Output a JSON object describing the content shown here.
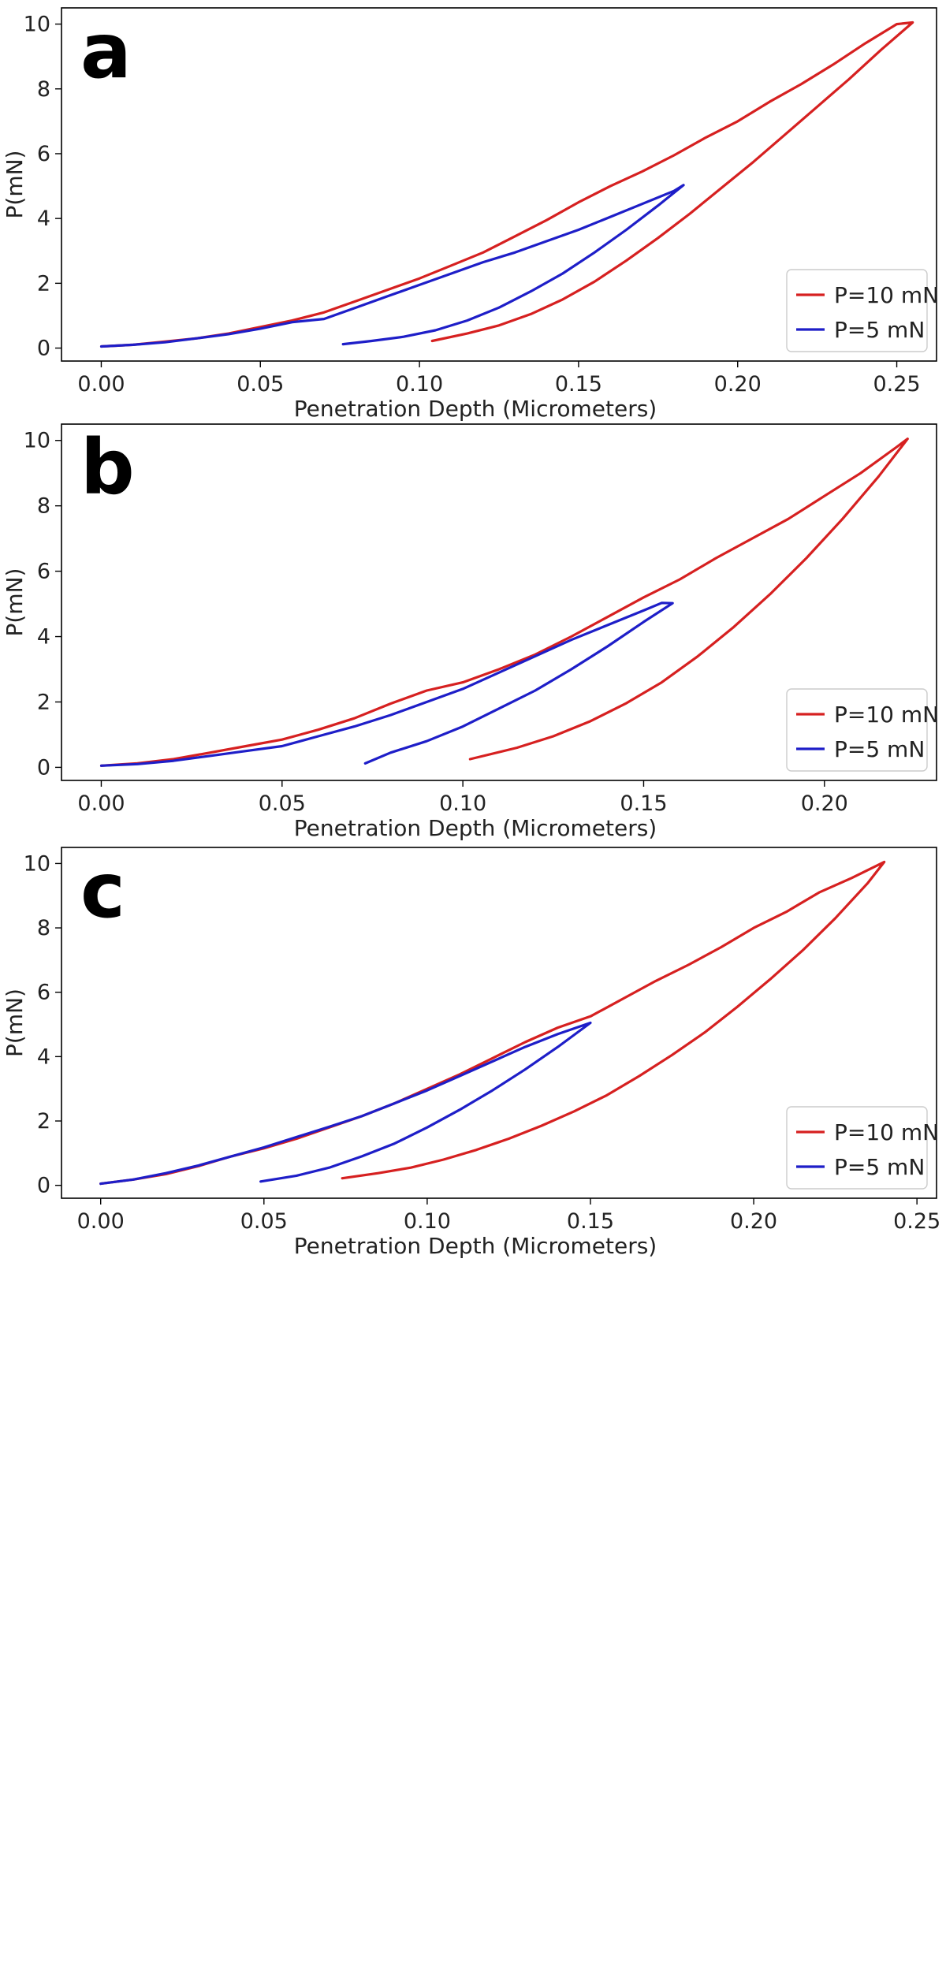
{
  "chart_data": [
    {
      "type": "line",
      "panel_label": "a",
      "xlabel": "Penetration Depth (Micrometers)",
      "ylabel": "P(mN)",
      "xlim": [
        -0.0125,
        0.2625
      ],
      "ylim": [
        -0.4,
        10.5
      ],
      "xticks": [
        0.0,
        0.05,
        0.1,
        0.15,
        0.2,
        0.25
      ],
      "xtick_labels": [
        "0.00",
        "0.05",
        "0.10",
        "0.15",
        "0.20",
        "0.25"
      ],
      "yticks": [
        0,
        2,
        4,
        6,
        8,
        10
      ],
      "ytick_labels": [
        "0",
        "2",
        "4",
        "6",
        "8",
        "10"
      ],
      "grid": false,
      "legend_position": "lower-right",
      "series": [
        {
          "name": "P=10 mN",
          "color": "#d62020",
          "points": [
            [
              0.0,
              0.05
            ],
            [
              0.01,
              0.1
            ],
            [
              0.02,
              0.2
            ],
            [
              0.03,
              0.3
            ],
            [
              0.04,
              0.45
            ],
            [
              0.05,
              0.65
            ],
            [
              0.06,
              0.85
            ],
            [
              0.07,
              1.1
            ],
            [
              0.08,
              1.45
            ],
            [
              0.09,
              1.8
            ],
            [
              0.1,
              2.15
            ],
            [
              0.11,
              2.55
            ],
            [
              0.12,
              2.95
            ],
            [
              0.13,
              3.45
            ],
            [
              0.14,
              3.95
            ],
            [
              0.15,
              4.5
            ],
            [
              0.16,
              5.0
            ],
            [
              0.17,
              5.45
            ],
            [
              0.18,
              5.95
            ],
            [
              0.19,
              6.5
            ],
            [
              0.2,
              7.0
            ],
            [
              0.21,
              7.6
            ],
            [
              0.22,
              8.15
            ],
            [
              0.23,
              8.75
            ],
            [
              0.24,
              9.4
            ],
            [
              0.25,
              10.0
            ],
            [
              0.255,
              10.05
            ],
            [
              0.245,
              9.2
            ],
            [
              0.235,
              8.3
            ],
            [
              0.225,
              7.45
            ],
            [
              0.215,
              6.6
            ],
            [
              0.205,
              5.75
            ],
            [
              0.195,
              4.95
            ],
            [
              0.185,
              4.15
            ],
            [
              0.175,
              3.4
            ],
            [
              0.165,
              2.7
            ],
            [
              0.155,
              2.05
            ],
            [
              0.145,
              1.5
            ],
            [
              0.135,
              1.05
            ],
            [
              0.125,
              0.7
            ],
            [
              0.115,
              0.45
            ],
            [
              0.104,
              0.22
            ]
          ]
        },
        {
          "name": "P=5 mN",
          "color": "#1e1ec8",
          "points": [
            [
              0.0,
              0.05
            ],
            [
              0.01,
              0.1
            ],
            [
              0.02,
              0.18
            ],
            [
              0.03,
              0.3
            ],
            [
              0.04,
              0.43
            ],
            [
              0.05,
              0.6
            ],
            [
              0.06,
              0.8
            ],
            [
              0.07,
              0.9
            ],
            [
              0.08,
              1.25
            ],
            [
              0.09,
              1.6
            ],
            [
              0.1,
              1.95
            ],
            [
              0.11,
              2.3
            ],
            [
              0.12,
              2.65
            ],
            [
              0.13,
              2.95
            ],
            [
              0.14,
              3.3
            ],
            [
              0.15,
              3.65
            ],
            [
              0.16,
              4.05
            ],
            [
              0.17,
              4.45
            ],
            [
              0.18,
              4.85
            ],
            [
              0.183,
              5.03
            ],
            [
              0.175,
              4.4
            ],
            [
              0.165,
              3.65
            ],
            [
              0.155,
              2.95
            ],
            [
              0.145,
              2.3
            ],
            [
              0.135,
              1.75
            ],
            [
              0.125,
              1.25
            ],
            [
              0.115,
              0.85
            ],
            [
              0.105,
              0.55
            ],
            [
              0.095,
              0.35
            ],
            [
              0.085,
              0.22
            ],
            [
              0.076,
              0.12
            ]
          ]
        }
      ]
    },
    {
      "type": "line",
      "panel_label": "b",
      "xlabel": "Penetration Depth (Micrometers)",
      "ylabel": "P(mN)",
      "xlim": [
        -0.011,
        0.231
      ],
      "ylim": [
        -0.4,
        10.5
      ],
      "xticks": [
        0.0,
        0.05,
        0.1,
        0.15,
        0.2
      ],
      "xtick_labels": [
        "0.00",
        "0.05",
        "0.10",
        "0.15",
        "0.20"
      ],
      "yticks": [
        0,
        2,
        4,
        6,
        8,
        10
      ],
      "ytick_labels": [
        "0",
        "2",
        "4",
        "6",
        "8",
        "10"
      ],
      "grid": false,
      "legend_position": "lower-right",
      "series": [
        {
          "name": "P=10 mN",
          "color": "#d62020",
          "points": [
            [
              0.0,
              0.05
            ],
            [
              0.01,
              0.12
            ],
            [
              0.02,
              0.25
            ],
            [
              0.03,
              0.45
            ],
            [
              0.04,
              0.65
            ],
            [
              0.05,
              0.85
            ],
            [
              0.06,
              1.15
            ],
            [
              0.07,
              1.5
            ],
            [
              0.08,
              1.95
            ],
            [
              0.09,
              2.35
            ],
            [
              0.1,
              2.6
            ],
            [
              0.11,
              3.0
            ],
            [
              0.12,
              3.45
            ],
            [
              0.13,
              4.0
            ],
            [
              0.14,
              4.6
            ],
            [
              0.15,
              5.2
            ],
            [
              0.16,
              5.75
            ],
            [
              0.17,
              6.4
            ],
            [
              0.18,
              7.0
            ],
            [
              0.19,
              7.6
            ],
            [
              0.2,
              8.3
            ],
            [
              0.21,
              9.0
            ],
            [
              0.22,
              9.8
            ],
            [
              0.223,
              10.05
            ],
            [
              0.215,
              8.9
            ],
            [
              0.205,
              7.6
            ],
            [
              0.195,
              6.4
            ],
            [
              0.185,
              5.3
            ],
            [
              0.175,
              4.3
            ],
            [
              0.165,
              3.4
            ],
            [
              0.155,
              2.6
            ],
            [
              0.145,
              1.95
            ],
            [
              0.135,
              1.4
            ],
            [
              0.125,
              0.95
            ],
            [
              0.115,
              0.6
            ],
            [
              0.102,
              0.25
            ]
          ]
        },
        {
          "name": "P=5 mN",
          "color": "#1e1ec8",
          "points": [
            [
              0.0,
              0.05
            ],
            [
              0.01,
              0.1
            ],
            [
              0.02,
              0.2
            ],
            [
              0.03,
              0.35
            ],
            [
              0.04,
              0.5
            ],
            [
              0.05,
              0.65
            ],
            [
              0.06,
              0.95
            ],
            [
              0.07,
              1.25
            ],
            [
              0.08,
              1.6
            ],
            [
              0.09,
              2.0
            ],
            [
              0.1,
              2.4
            ],
            [
              0.11,
              2.9
            ],
            [
              0.12,
              3.4
            ],
            [
              0.13,
              3.9
            ],
            [
              0.14,
              4.35
            ],
            [
              0.15,
              4.8
            ],
            [
              0.155,
              5.03
            ],
            [
              0.158,
              5.02
            ],
            [
              0.15,
              4.45
            ],
            [
              0.14,
              3.7
            ],
            [
              0.13,
              3.0
            ],
            [
              0.12,
              2.35
            ],
            [
              0.11,
              1.8
            ],
            [
              0.1,
              1.25
            ],
            [
              0.09,
              0.8
            ],
            [
              0.08,
              0.45
            ],
            [
              0.073,
              0.12
            ]
          ]
        }
      ]
    },
    {
      "type": "line",
      "panel_label": "c",
      "xlabel": "Penetration Depth (Micrometers)",
      "ylabel": "P(mN)",
      "xlim": [
        -0.012,
        0.256
      ],
      "ylim": [
        -0.4,
        10.5
      ],
      "xticks": [
        0.0,
        0.05,
        0.1,
        0.15,
        0.2,
        0.25
      ],
      "xtick_labels": [
        "0.00",
        "0.05",
        "0.10",
        "0.15",
        "0.20",
        "0.25"
      ],
      "yticks": [
        0,
        2,
        4,
        6,
        8,
        10
      ],
      "ytick_labels": [
        "0",
        "2",
        "4",
        "6",
        "8",
        "10"
      ],
      "grid": false,
      "legend_position": "lower-right",
      "series": [
        {
          "name": "P=10 mN",
          "color": "#d62020",
          "points": [
            [
              0.0,
              0.05
            ],
            [
              0.01,
              0.18
            ],
            [
              0.02,
              0.35
            ],
            [
              0.03,
              0.6
            ],
            [
              0.04,
              0.9
            ],
            [
              0.05,
              1.15
            ],
            [
              0.06,
              1.45
            ],
            [
              0.07,
              1.8
            ],
            [
              0.08,
              2.15
            ],
            [
              0.09,
              2.55
            ],
            [
              0.1,
              3.0
            ],
            [
              0.11,
              3.45
            ],
            [
              0.12,
              3.95
            ],
            [
              0.13,
              4.45
            ],
            [
              0.14,
              4.9
            ],
            [
              0.15,
              5.25
            ],
            [
              0.16,
              5.8
            ],
            [
              0.17,
              6.35
            ],
            [
              0.18,
              6.85
            ],
            [
              0.19,
              7.4
            ],
            [
              0.2,
              8.0
            ],
            [
              0.21,
              8.5
            ],
            [
              0.22,
              9.1
            ],
            [
              0.23,
              9.55
            ],
            [
              0.24,
              10.05
            ],
            [
              0.235,
              9.4
            ],
            [
              0.225,
              8.3
            ],
            [
              0.215,
              7.3
            ],
            [
              0.205,
              6.4
            ],
            [
              0.195,
              5.55
            ],
            [
              0.185,
              4.75
            ],
            [
              0.175,
              4.05
            ],
            [
              0.165,
              3.4
            ],
            [
              0.155,
              2.8
            ],
            [
              0.145,
              2.3
            ],
            [
              0.135,
              1.85
            ],
            [
              0.125,
              1.45
            ],
            [
              0.115,
              1.1
            ],
            [
              0.105,
              0.8
            ],
            [
              0.095,
              0.55
            ],
            [
              0.085,
              0.38
            ],
            [
              0.074,
              0.22
            ]
          ]
        },
        {
          "name": "P=5 mN",
          "color": "#1e1ec8",
          "points": [
            [
              0.0,
              0.05
            ],
            [
              0.01,
              0.18
            ],
            [
              0.02,
              0.38
            ],
            [
              0.03,
              0.62
            ],
            [
              0.04,
              0.9
            ],
            [
              0.05,
              1.18
            ],
            [
              0.06,
              1.5
            ],
            [
              0.07,
              1.82
            ],
            [
              0.08,
              2.15
            ],
            [
              0.09,
              2.55
            ],
            [
              0.1,
              2.95
            ],
            [
              0.11,
              3.4
            ],
            [
              0.12,
              3.85
            ],
            [
              0.13,
              4.3
            ],
            [
              0.14,
              4.7
            ],
            [
              0.15,
              5.05
            ],
            [
              0.14,
              4.3
            ],
            [
              0.13,
              3.6
            ],
            [
              0.12,
              2.95
            ],
            [
              0.11,
              2.35
            ],
            [
              0.1,
              1.8
            ],
            [
              0.09,
              1.3
            ],
            [
              0.08,
              0.9
            ],
            [
              0.07,
              0.55
            ],
            [
              0.06,
              0.3
            ],
            [
              0.049,
              0.12
            ]
          ]
        }
      ]
    }
  ]
}
